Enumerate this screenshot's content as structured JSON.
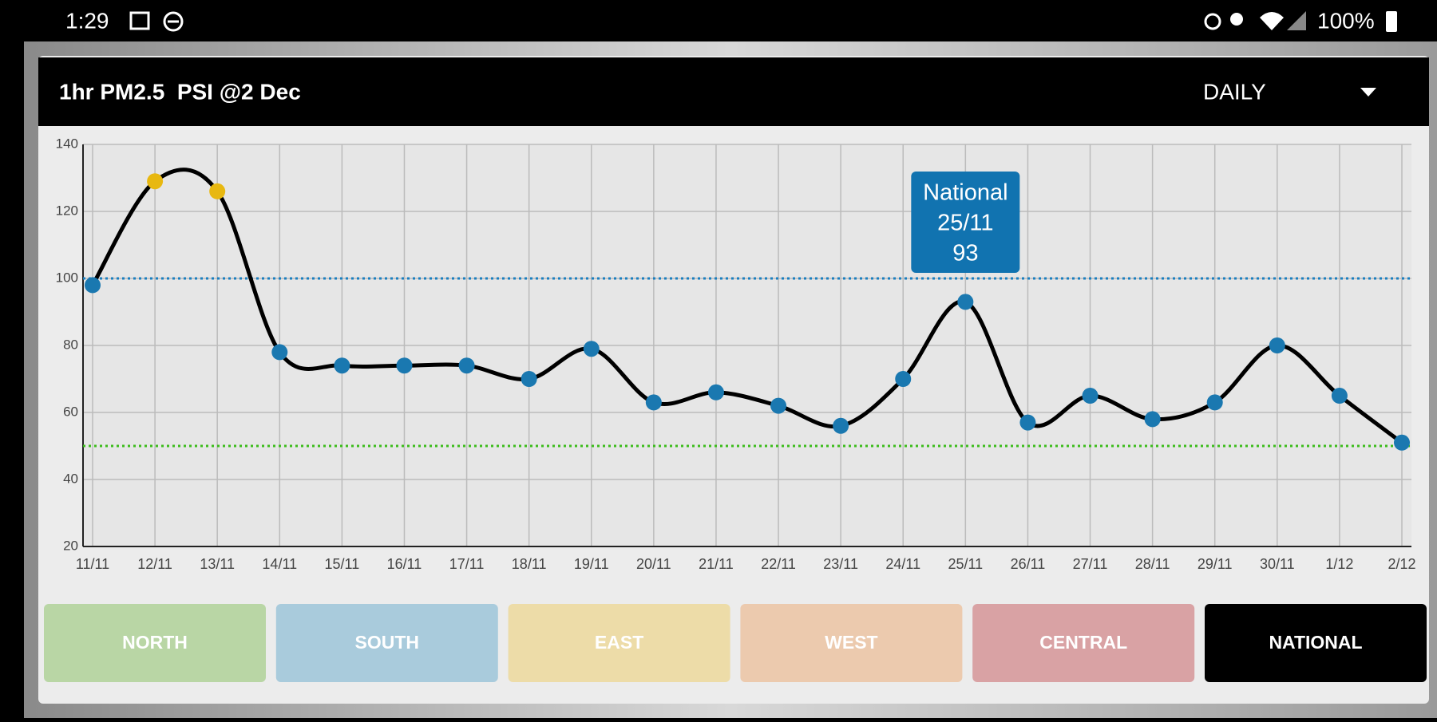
{
  "status_bar": {
    "time": "1:29",
    "battery": "100%"
  },
  "header": {
    "title": "1hr PM2.5  PSI @2 Dec",
    "period": "DAILY"
  },
  "chart_data": {
    "type": "line",
    "categories": [
      "11/11",
      "12/11",
      "13/11",
      "14/11",
      "15/11",
      "16/11",
      "17/11",
      "18/11",
      "19/11",
      "20/11",
      "21/11",
      "22/11",
      "23/11",
      "24/11",
      "25/11",
      "26/11",
      "27/11",
      "28/11",
      "29/11",
      "30/11",
      "1/12",
      "2/12"
    ],
    "series": [
      {
        "name": "National",
        "color": "#1a78b0",
        "high_color": "#e8b810",
        "values": [
          98,
          129,
          126,
          78,
          74,
          74,
          74,
          70,
          79,
          63,
          66,
          62,
          56,
          70,
          93,
          57,
          65,
          58,
          63,
          80,
          65,
          51
        ]
      }
    ],
    "ylim": [
      20,
      140
    ],
    "yticks": [
      20,
      40,
      60,
      80,
      100,
      120,
      140
    ],
    "grid": true,
    "reference_lines": [
      {
        "value": 100,
        "color": "#1a7fc0"
      },
      {
        "value": 50,
        "color": "#3cbc1c"
      }
    ],
    "selected_index": 14
  },
  "buttons": [
    {
      "label": "NORTH",
      "color": "#b9d6a5"
    },
    {
      "label": "SOUTH",
      "color": "#a9cbdc"
    },
    {
      "label": "EAST",
      "color": "#eddca8"
    },
    {
      "label": "WEST",
      "color": "#eccaae"
    },
    {
      "label": "CENTRAL",
      "color": "#d9a2a4"
    },
    {
      "label": "NATIONAL",
      "color": "#000000"
    }
  ]
}
